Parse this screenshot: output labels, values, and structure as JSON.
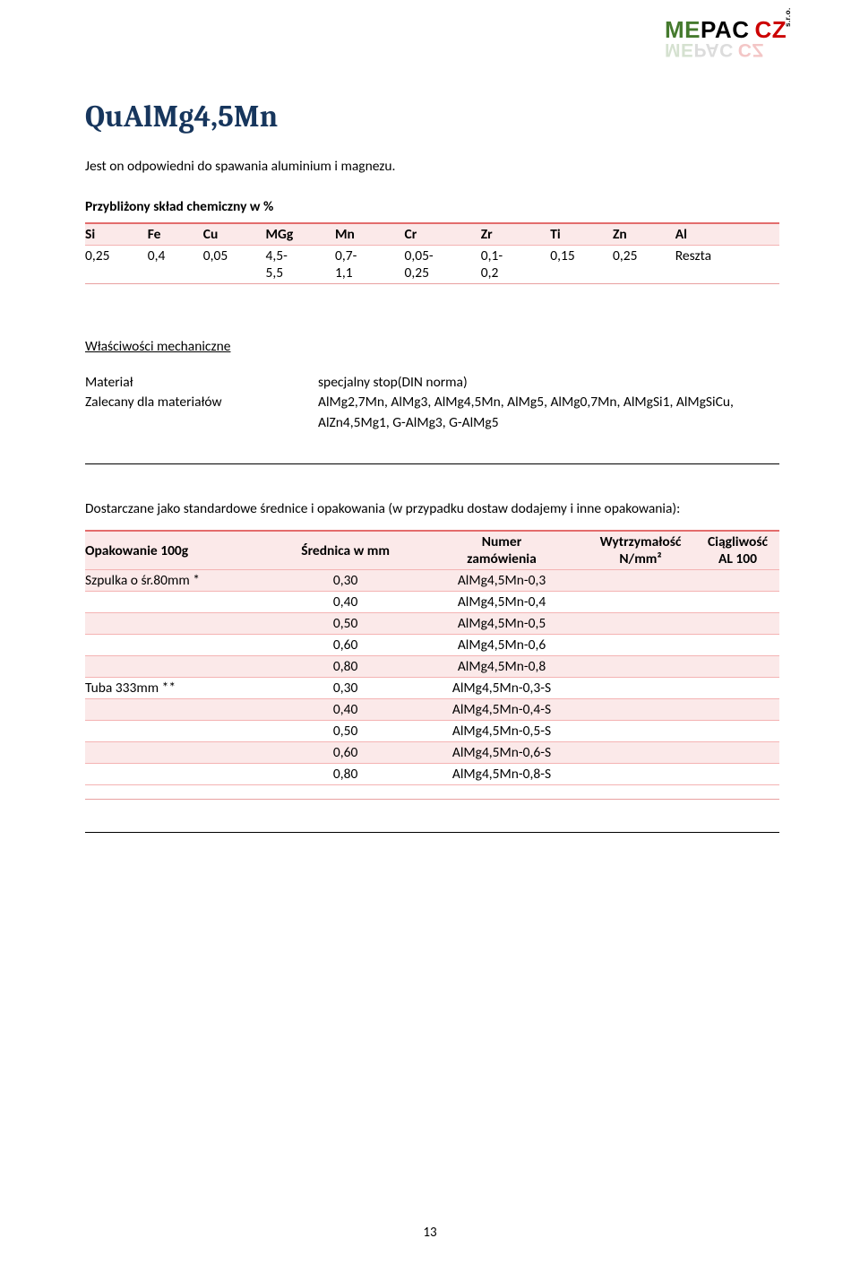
{
  "logo": {
    "part1": "ME",
    "part2": "PAC",
    "part3": "CZ",
    "suffix": "s.r.o."
  },
  "title": "QuAlMg4,5Mn",
  "intro": "Jest on odpowiedni do spawania aluminium i magnezu.",
  "comp": {
    "label": "Przybliżony skład chemiczny w %",
    "headers": [
      "Si",
      "Fe",
      "Cu",
      "MGg",
      "Mn",
      "Cr",
      "Zr",
      "Ti",
      "Zn",
      "Al"
    ],
    "row": [
      "0,25",
      "0,4",
      "0,05",
      "4,5-\n5,5",
      "0,7-\n1,1",
      "0,05-\n0,25",
      "0,1-\n0,2",
      "0,15",
      "0,25",
      "Reszta"
    ]
  },
  "props": {
    "title": "Właściwości mechaniczne",
    "rows": [
      {
        "k": "Materiał",
        "v": "specjalny stop(DIN norma)"
      },
      {
        "k": "Zalecany dla materiałów",
        "v": "AlMg2,7Mn, AlMg3, AlMg4,5Mn, AlMg5, AlMg0,7Mn, AlMgSi1, AlMgSiCu, AlZn4,5Mg1, G-AlMg3, G-AlMg5"
      }
    ]
  },
  "deliv": {
    "note": "Dostarczane jako standardowe średnice i opakowania (w przypadku dostaw dodajemy i inne opakowania):",
    "headers": [
      "Opakowanie 100g",
      "Średnica w mm",
      "Numer\nzamówienia",
      "Wytrzymałość\nN/mm²",
      "Ciągliwość\nAL 100"
    ],
    "rows": [
      {
        "c0": "Szpulka o śr.80mm *",
        "c1": "0,30",
        "c2": "AlMg4,5Mn-0,3",
        "alt": true
      },
      {
        "c0": "",
        "c1": "0,40",
        "c2": "AlMg4,5Mn-0,4",
        "alt": false
      },
      {
        "c0": "",
        "c1": "0,50",
        "c2": "AlMg4,5Mn-0,5",
        "alt": true
      },
      {
        "c0": "",
        "c1": "0,60",
        "c2": "AlMg4,5Mn-0,6",
        "alt": false
      },
      {
        "c0": "",
        "c1": "0,80",
        "c2": "AlMg4,5Mn-0,8",
        "alt": true
      },
      {
        "c0": "Tuba 333mm **",
        "c1": "0,30",
        "c2": "AlMg4,5Mn-0,3-S",
        "alt": false
      },
      {
        "c0": "",
        "c1": "0,40",
        "c2": "AlMg4,5Mn-0,4-S",
        "alt": true
      },
      {
        "c0": "",
        "c1": "0,50",
        "c2": "AlMg4,5Mn-0,5-S",
        "alt": false
      },
      {
        "c0": "",
        "c1": "0,60",
        "c2": "AlMg4,5Mn-0,6-S",
        "alt": true
      },
      {
        "c0": "",
        "c1": "0,80",
        "c2": "AlMg4,5Mn-0,8-S",
        "alt": false
      }
    ]
  },
  "pagenum": "13",
  "colors": {
    "heading": "#17365d",
    "rule_dark": "#e36c6c",
    "rule_light": "#f4b3b3",
    "row_tint": "#fbe9e9"
  },
  "col_widths": {
    "comp": [
      "9%",
      "8%",
      "9%",
      "10%",
      "10%",
      "11%",
      "10%",
      "9%",
      "9%",
      "15%"
    ],
    "deliv": [
      "27%",
      "21%",
      "24%",
      "16%",
      "12%"
    ]
  }
}
